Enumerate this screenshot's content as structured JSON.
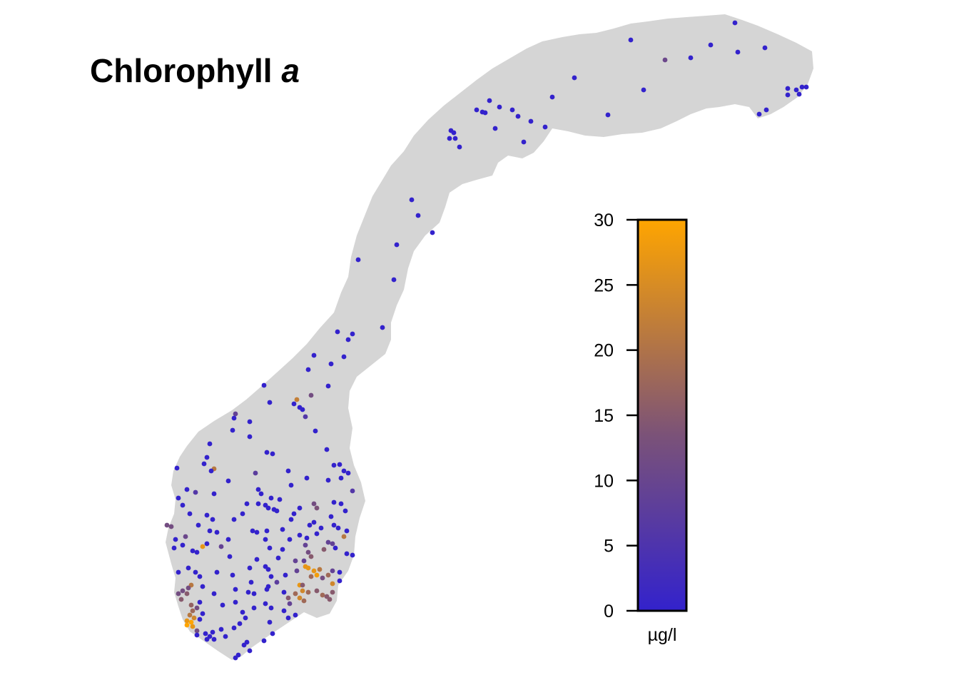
{
  "title": {
    "main": "Chlorophyll",
    "italic": "a"
  },
  "colorbar": {
    "min": 0,
    "max": 30,
    "ticks": [
      "0",
      "5",
      "10",
      "15",
      "20",
      "25",
      "30"
    ],
    "unit": "µg/l",
    "color_low": "#3322CC",
    "color_mid": "#7B5278",
    "color_high": "#FFA500"
  },
  "map": {
    "land_color": "#D5D5D5",
    "region": "Norway"
  }
}
